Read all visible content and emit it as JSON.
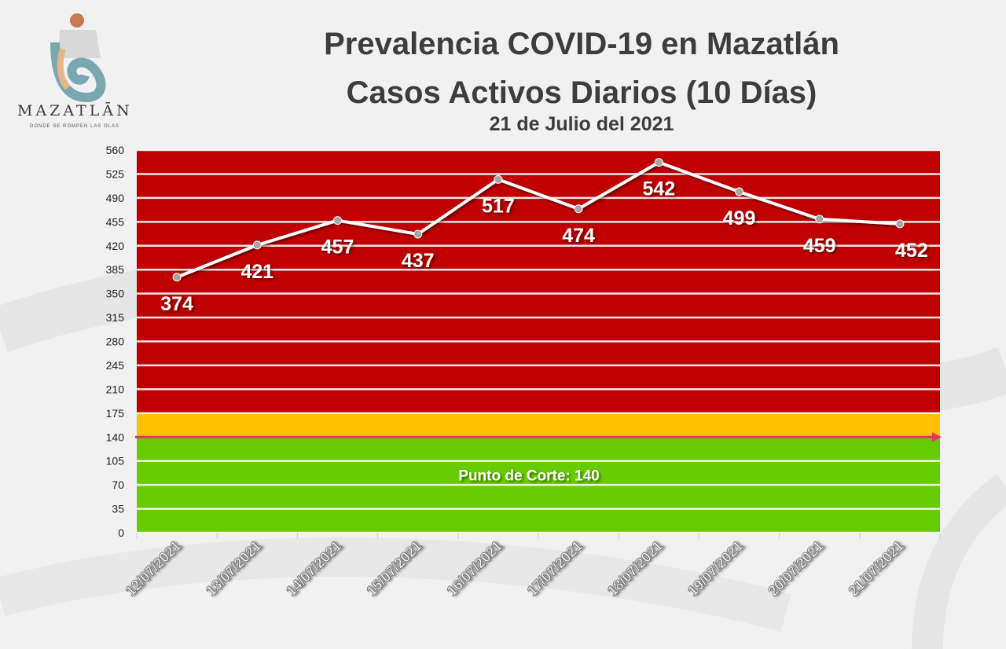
{
  "branding": {
    "logo_text": "MAZATLĀN",
    "tagline": "DONDE SE ROMPEN LAS OLAS"
  },
  "header": {
    "title_line1": "Prevalencia COVID-19 en Mazatlán",
    "title_line2": "Casos Activos Diarios (10 Días)",
    "subtitle": "21 de Julio del 2021"
  },
  "chart_data": {
    "type": "line",
    "title": "Prevalencia COVID-19 en Mazatlán Casos Activos Diarios (10 Días)",
    "subtitle": "21 de Julio del 2021",
    "xlabel": "",
    "ylabel": "",
    "categories": [
      "12/07/2021",
      "13/07/2021",
      "14/07/2021",
      "15/07/2021",
      "16/07/2021",
      "17/07/2021",
      "18/07/2021",
      "19/07/2021",
      "20/07/2021",
      "21/07/2021"
    ],
    "values": [
      374,
      421,
      457,
      437,
      517,
      474,
      542,
      499,
      459,
      452
    ],
    "ylim": [
      0,
      560
    ],
    "yticks": [
      0,
      35,
      70,
      105,
      140,
      175,
      210,
      245,
      280,
      315,
      350,
      385,
      420,
      455,
      490,
      525,
      560
    ],
    "bands": [
      {
        "from": 0,
        "to": 140,
        "color": "#66cc00"
      },
      {
        "from": 140,
        "to": 175,
        "color": "#ffc000"
      },
      {
        "from": 175,
        "to": 560,
        "color": "#c00000"
      }
    ],
    "cutoff": {
      "value": 140,
      "label": "Punto de Corte: 140",
      "color": "#e8316e"
    },
    "line_color": "#ffffff",
    "grid": true,
    "legend": "none"
  }
}
